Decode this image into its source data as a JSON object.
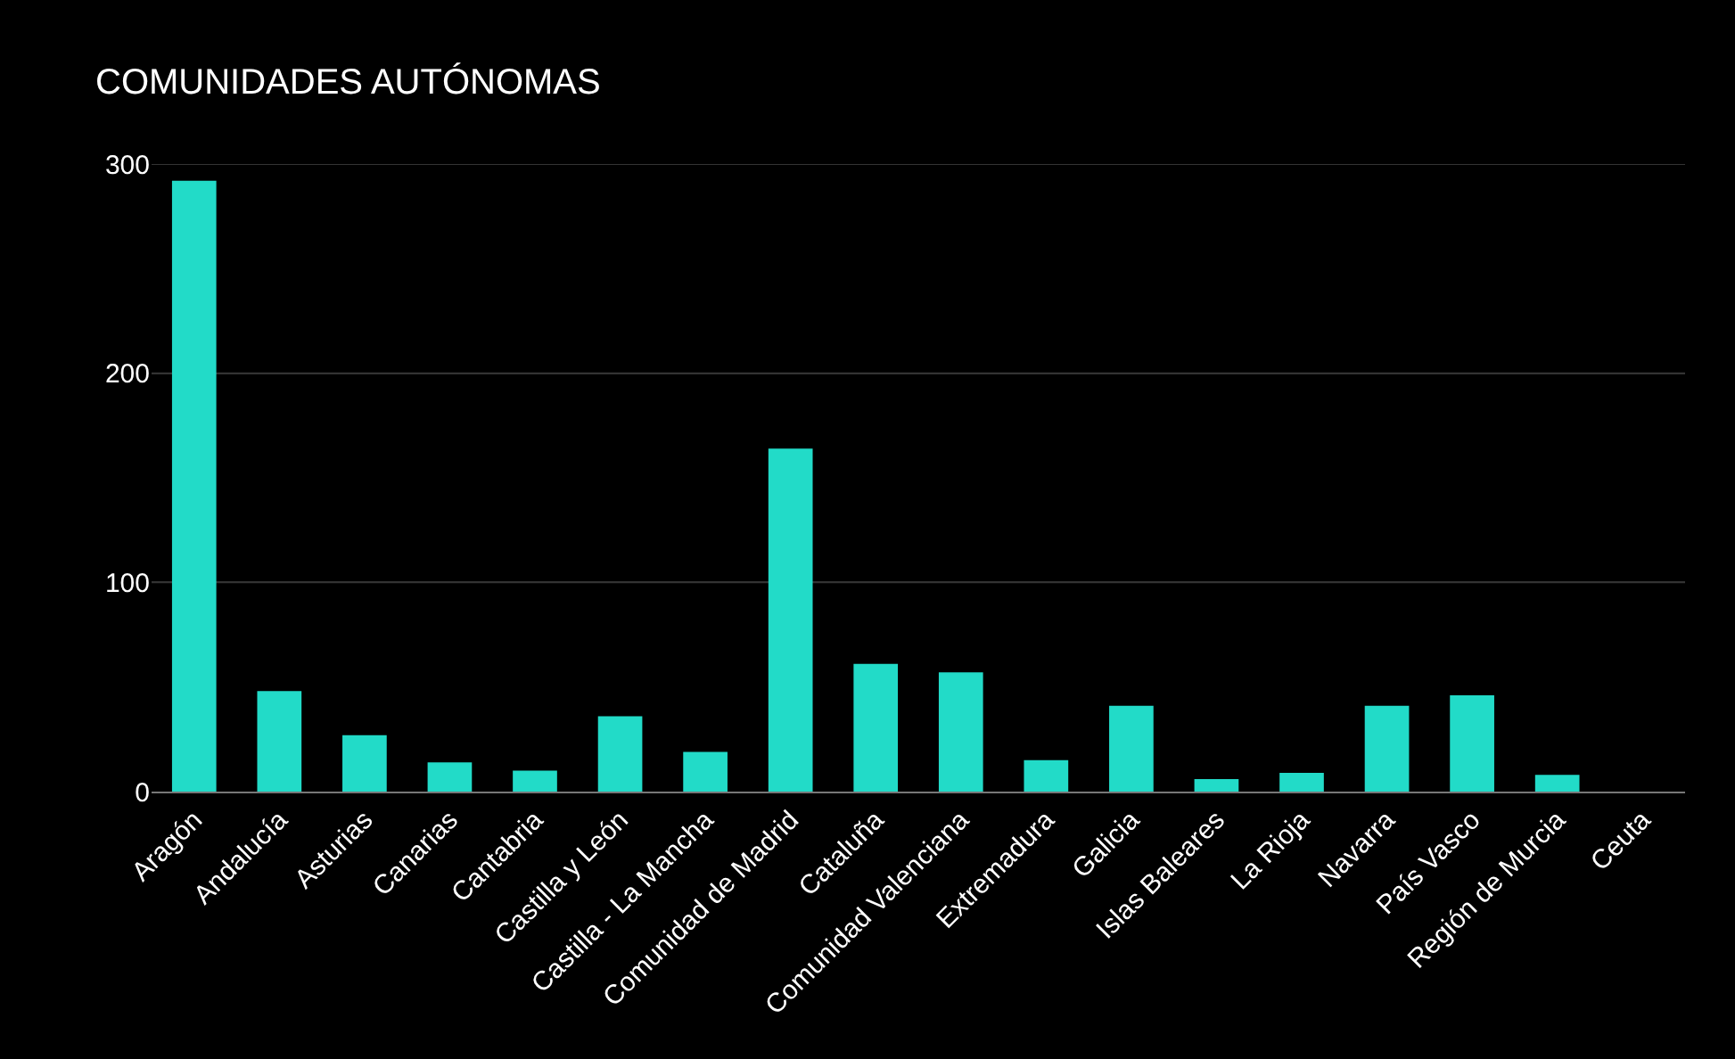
{
  "chart_data": {
    "type": "bar",
    "title": "COMUNIDADES AUTÓNOMAS",
    "categories": [
      "Aragón",
      "Andalucía",
      "Asturias",
      "Canarias",
      "Cantabria",
      "Castilla y León",
      "Castilla - La Mancha",
      "Comunidad de Madrid",
      "Cataluña",
      "Comunidad Valenciana",
      "Extremadura",
      "Galicia",
      "Islas Baleares",
      "La Rioja",
      "Navarra",
      "País Vasco",
      "Región de Murcia",
      "Ceuta"
    ],
    "values": [
      292,
      48,
      27,
      14,
      10,
      36,
      19,
      164,
      61,
      57,
      15,
      41,
      6,
      9,
      41,
      46,
      8,
      0
    ],
    "color": "#22dbc8",
    "ylim": [
      0,
      300
    ],
    "yticks": [
      0,
      100,
      200,
      300
    ],
    "grid": "y"
  }
}
